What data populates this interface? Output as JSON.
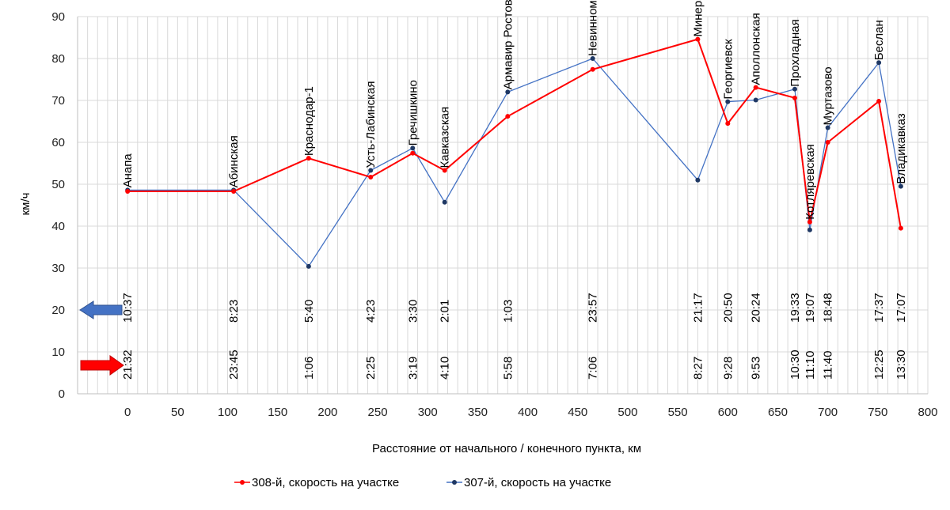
{
  "chart_data": {
    "type": "line",
    "xlabel": "Расстояние от начального / конечного пункта, км",
    "ylabel": "км/ч",
    "xlim": [
      -50,
      800
    ],
    "ylim": [
      0,
      90
    ],
    "x_ticks": [
      0,
      50,
      100,
      150,
      200,
      250,
      300,
      350,
      400,
      450,
      500,
      550,
      600,
      650,
      700,
      750,
      800
    ],
    "y_ticks": [
      0,
      10,
      20,
      30,
      40,
      50,
      60,
      70,
      80,
      90
    ],
    "grid": true,
    "colors": {
      "red": "#ff0000",
      "blue": "#4472c4",
      "blue_marker": "#1f3864",
      "grid": "#d9d9d9",
      "axis": "#bfbfbf"
    },
    "stations": [
      {
        "name": "Анапа",
        "km": 0,
        "time_307": "10:37",
        "time_308": "21:32"
      },
      {
        "name": "Абинская",
        "km": 106,
        "time_307": "8:23",
        "time_308": "23:45"
      },
      {
        "name": "Краснодар-1",
        "km": 181,
        "time_307": "5:40",
        "time_308": "1:06"
      },
      {
        "name": "Усть-Лабинская",
        "km": 243,
        "time_307": "4:23",
        "time_308": "2:25"
      },
      {
        "name": "Гречишкино",
        "km": 285,
        "time_307": "3:30",
        "time_308": "3:19"
      },
      {
        "name": "Кавказская",
        "km": 317,
        "time_307": "2:01",
        "time_308": "4:10"
      },
      {
        "name": "Армавир Ростовский",
        "km": 380,
        "time_307": "1:03",
        "time_308": "5:58"
      },
      {
        "name": "Невинномысская",
        "km": 465,
        "time_307": "23:57",
        "time_308": "7:06"
      },
      {
        "name": "Минеральные Воды",
        "km": 570,
        "time_307": "21:17",
        "time_308": "8:27"
      },
      {
        "name": "Георгиевск",
        "km": 600,
        "time_307": "20:50",
        "time_308": "9:28"
      },
      {
        "name": "Аполлонская",
        "km": 628,
        "time_307": "20:24",
        "time_308": "9:53"
      },
      {
        "name": "Прохладная",
        "km": 667,
        "time_307": "19:33",
        "time_308": "10:30"
      },
      {
        "name": "Котляревская",
        "km": 682,
        "time_307": "19:07",
        "time_308": "11:10"
      },
      {
        "name": "Муртазово",
        "km": 700,
        "time_307": "18:48",
        "time_308": "11:40"
      },
      {
        "name": "Беслан",
        "km": 751,
        "time_307": "17:37",
        "time_308": "12:25"
      },
      {
        "name": "Владикавказ",
        "km": 773,
        "time_307": "17:07",
        "time_308": "13:30"
      }
    ],
    "series": [
      {
        "name": "308-й, скорость на участке",
        "color": "#ff0000",
        "x": [
          0,
          106,
          181,
          243,
          285,
          317,
          380,
          465,
          570,
          600,
          628,
          667,
          682,
          700,
          751,
          773
        ],
        "values": [
          48.3,
          48.3,
          56.2,
          51.7,
          57.4,
          53.3,
          66.2,
          77.4,
          84.6,
          64.5,
          73.1,
          70.6,
          41.0,
          60.0,
          69.8,
          39.5
        ]
      },
      {
        "name": "307-й, скорость на участке",
        "color": "#4472c4",
        "x": [
          0,
          106,
          181,
          243,
          285,
          317,
          380,
          465,
          570,
          600,
          628,
          667,
          682,
          700,
          751,
          773
        ],
        "values": [
          48.6,
          48.6,
          30.4,
          53.3,
          58.6,
          45.7,
          72.0,
          80.0,
          51.0,
          69.7,
          70.1,
          72.7,
          39.1,
          63.5,
          79.0,
          49.5
        ]
      }
    ]
  }
}
